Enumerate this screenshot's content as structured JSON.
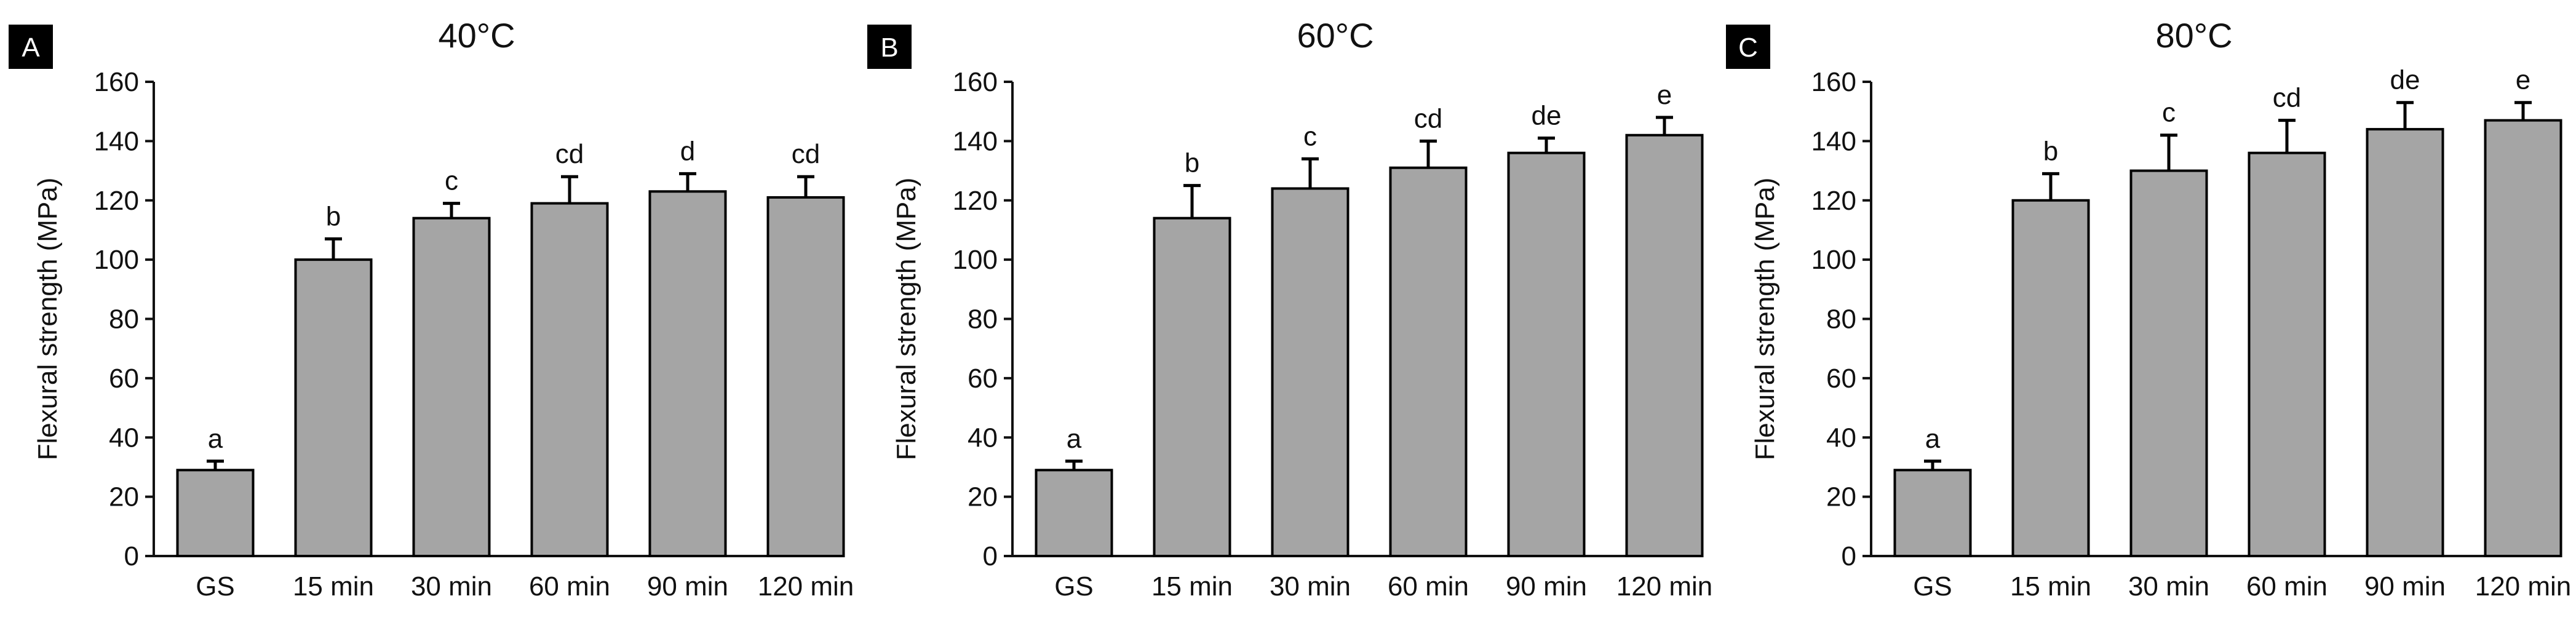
{
  "chart_data": [
    {
      "type": "bar",
      "panel_label": "A",
      "title": "40°C",
      "ylabel": "Flexural strength (MPa)",
      "xlabel": "",
      "ylim": [
        0,
        160
      ],
      "yticks": [
        "0",
        "20",
        "40",
        "60",
        "80",
        "100",
        "120",
        "140",
        "160"
      ],
      "categories": [
        "GS",
        "15 min",
        "30 min",
        "60 min",
        "90 min",
        "120 min"
      ],
      "values": [
        29,
        100,
        114,
        119,
        123,
        121
      ],
      "errors": [
        3,
        7,
        5,
        9,
        6,
        7
      ],
      "letters": [
        "a",
        "b",
        "c",
        "cd",
        "d",
        "cd"
      ],
      "bar_color": "#a5a5a5",
      "grid": false
    },
    {
      "type": "bar",
      "panel_label": "B",
      "title": "60°C",
      "ylabel": "Flexural strength (MPa)",
      "xlabel": "",
      "ylim": [
        0,
        160
      ],
      "yticks": [
        "0",
        "20",
        "40",
        "60",
        "80",
        "100",
        "120",
        "140",
        "160"
      ],
      "categories": [
        "GS",
        "15 min",
        "30 min",
        "60 min",
        "90 min",
        "120 min"
      ],
      "values": [
        29,
        114,
        124,
        131,
        136,
        142
      ],
      "errors": [
        3,
        11,
        10,
        9,
        5,
        6
      ],
      "letters": [
        "a",
        "b",
        "c",
        "cd",
        "de",
        "e"
      ],
      "bar_color": "#a5a5a5",
      "grid": false
    },
    {
      "type": "bar",
      "panel_label": "C",
      "title": "80°C",
      "ylabel": "Flexural strength (MPa)",
      "xlabel": "",
      "ylim": [
        0,
        160
      ],
      "yticks": [
        "0",
        "20",
        "40",
        "60",
        "80",
        "100",
        "120",
        "140",
        "160"
      ],
      "categories": [
        "GS",
        "15 min",
        "30 min",
        "60 min",
        "90 min",
        "120 min"
      ],
      "values": [
        29,
        120,
        130,
        136,
        144,
        147
      ],
      "errors": [
        3,
        9,
        12,
        11,
        9,
        6
      ],
      "letters": [
        "a",
        "b",
        "c",
        "cd",
        "de",
        "e"
      ],
      "bar_color": "#a5a5a5",
      "grid": false
    }
  ]
}
